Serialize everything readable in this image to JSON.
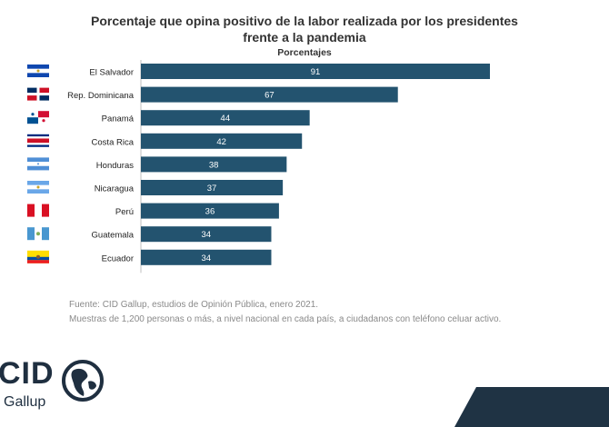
{
  "chart_data": {
    "type": "bar",
    "orientation": "horizontal",
    "title": "Porcentaje que opina positivo de la labor realizada por los presidentes frente a la pandemia",
    "title_line1": "Porcentaje que opina positivo de la labor realizada por los presidentes",
    "title_line2": "frente a la pandemia",
    "subtitle": "Porcentajes",
    "categories": [
      "El Salvador",
      "Rep. Dominicana",
      "Panamá",
      "Costa Rica",
      "Honduras",
      "Nicaragua",
      "Perú",
      "Guatemala",
      "Ecuador"
    ],
    "values": [
      91,
      67,
      44,
      42,
      38,
      37,
      36,
      34,
      34
    ],
    "xlim": [
      0,
      100
    ],
    "grid": false,
    "bar_color": "#23536f",
    "label_color": "#ffffff"
  },
  "source": {
    "line1": "Fuente: CID Gallup, estudios de Opinión Pública, enero 2021.",
    "line2": "Muestras de 1,200 personas o más, a nivel nacional en cada país, a ciudadanos con teléfono celuar activo."
  },
  "logo": {
    "main": "CID",
    "sub": "Gallup"
  },
  "colors": {
    "accent": "#1f3344"
  },
  "flags": [
    "el-salvador-flag",
    "dominican-republic-flag",
    "panama-flag",
    "costa-rica-flag",
    "honduras-flag",
    "nicaragua-flag",
    "peru-flag",
    "guatemala-flag",
    "ecuador-flag"
  ]
}
